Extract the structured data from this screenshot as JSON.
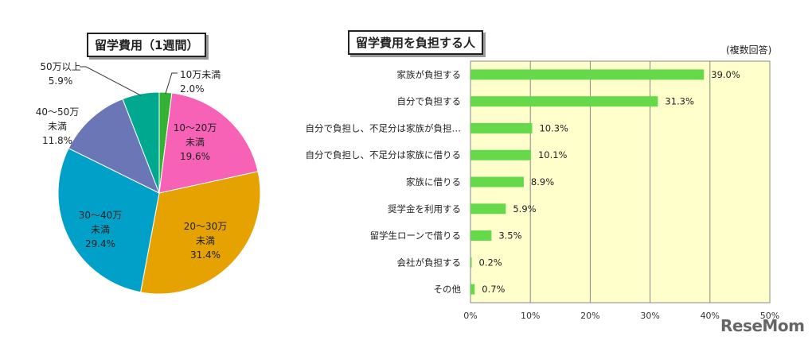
{
  "chart_data": [
    {
      "type": "pie",
      "title": "留学費用（1週間）",
      "slices": [
        {
          "label": "10万未満",
          "value": 2.0,
          "display": "2.0%",
          "color": "#33b233"
        },
        {
          "label": "10～20万未満",
          "value": 19.6,
          "display": "19.6%",
          "color": "#f761b6"
        },
        {
          "label": "20～30万未満",
          "value": 31.4,
          "display": "31.4%",
          "color": "#e6a200"
        },
        {
          "label": "30～40万未満",
          "value": 29.4,
          "display": "29.4%",
          "color": "#00a0c8"
        },
        {
          "label": "40～50万未満",
          "value": 11.8,
          "display": "11.8%",
          "color": "#6a76b6"
        },
        {
          "label": "50万以上",
          "value": 5.9,
          "display": "5.9%",
          "color": "#00a890"
        }
      ]
    },
    {
      "type": "bar",
      "orientation": "horizontal",
      "title": "留学費用を負担する人",
      "note": "(複数回答)",
      "categories": [
        "家族が負担する",
        "自分で負担する",
        "自分で負担し、不足分は家族が負担…",
        "自分で負担し、不足分は家族に借りる",
        "家族に借りる",
        "奨学金を利用する",
        "留学生ローンで借りる",
        "会社が負担する",
        "その他"
      ],
      "values": [
        39.0,
        31.3,
        10.3,
        10.1,
        8.9,
        5.9,
        3.5,
        0.2,
        0.7
      ],
      "value_labels": [
        "39.0%",
        "31.3%",
        "10.3%",
        "10.1%",
        "8.9%",
        "5.9%",
        "3.5%",
        "0.2%",
        "0.7%"
      ],
      "xlim": [
        0,
        50
      ],
      "ticks": [
        "0%",
        "10%",
        "20%",
        "30%",
        "40%",
        "50%"
      ],
      "bar_color": "#66d94a",
      "plot_bg": "#ffffcc",
      "grid": true
    }
  ],
  "watermark": "ReseMom"
}
